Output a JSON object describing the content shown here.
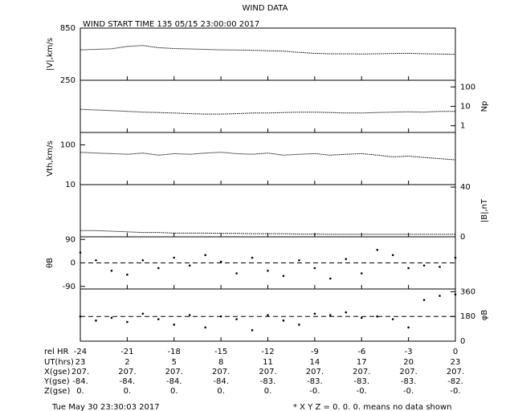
{
  "title": "WIND DATA",
  "subtitle": "WIND START TIME 135 05/15 23:00:00 2017",
  "chart_data": [
    {
      "type": "line",
      "ylabel": "|V|,km/s",
      "axis_side": "left",
      "color": "#000000",
      "x": [
        -24,
        -23,
        -22,
        -21,
        -20,
        -19,
        -18,
        -17,
        -16,
        -15,
        -14,
        -13,
        -12,
        -11,
        -10,
        -9,
        -8,
        -7,
        -6,
        -5,
        -4,
        -3,
        -2,
        -1,
        0
      ],
      "values": [
        600,
        605,
        612,
        640,
        650,
        625,
        615,
        610,
        605,
        600,
        598,
        595,
        590,
        585,
        570,
        560,
        555,
        555,
        552,
        555,
        558,
        560,
        555,
        552,
        548
      ],
      "xlim": [
        -24,
        0
      ],
      "xticks": [
        -24,
        -21,
        -18,
        -15,
        -12,
        -9,
        -6,
        -3,
        0
      ],
      "ylim": [
        250,
        850
      ],
      "yticks": [
        250,
        850
      ]
    },
    {
      "type": "line",
      "ylabel": "Np",
      "axis_side": "right",
      "log": true,
      "color": "#000000",
      "x": [
        -24,
        -23,
        -22,
        -21,
        -20,
        -19,
        -18,
        -17,
        -16,
        -15,
        -14,
        -13,
        -12,
        -11,
        -10,
        -9,
        -8,
        -7,
        -6,
        -5,
        -4,
        -3,
        -2,
        -1,
        0
      ],
      "values": [
        7,
        6.5,
        6,
        5.5,
        5,
        4.8,
        4.5,
        4.2,
        4,
        4,
        4.2,
        4.5,
        4.5,
        4.8,
        5,
        5,
        4.8,
        4.5,
        4.5,
        4.8,
        5,
        5.2,
        5,
        5.5,
        5.5
      ],
      "xlim": [
        -24,
        0
      ],
      "xticks": [
        -24,
        -21,
        -18,
        -15,
        -12,
        -9,
        -6,
        -3,
        0
      ],
      "ylim": [
        0.45,
        220
      ],
      "yticks": [
        1,
        10,
        100
      ]
    },
    {
      "type": "line",
      "ylabel": "Vth,km/s",
      "axis_side": "left",
      "log": true,
      "color": "#000000",
      "x": [
        -24,
        -23,
        -22,
        -21,
        -20,
        -19,
        -18,
        -17,
        -16,
        -15,
        -14,
        -13,
        -12,
        -11,
        -10,
        -9,
        -8,
        -7,
        -6,
        -5,
        -4,
        -3,
        -2,
        -1,
        0
      ],
      "values": [
        65,
        62,
        60,
        58,
        62,
        55,
        60,
        58,
        62,
        65,
        60,
        58,
        62,
        55,
        58,
        60,
        55,
        58,
        60,
        55,
        50,
        52,
        48,
        45,
        42
      ],
      "xlim": [
        -24,
        0
      ],
      "xticks": [
        -24,
        -21,
        -18,
        -15,
        -12,
        -9,
        -6,
        -3,
        0
      ],
      "ylim": [
        10,
        205
      ],
      "yticks": [
        10,
        100
      ]
    },
    {
      "type": "line",
      "ylabel": "|B|,nT",
      "axis_side": "right",
      "color": "#000000",
      "x": [
        -24,
        -23,
        -22,
        -21,
        -20,
        -19,
        -18,
        -17,
        -16,
        -15,
        -14,
        -13,
        -12,
        -11,
        -10,
        -9,
        -8,
        -7,
        -6,
        -5,
        -4,
        -3,
        -2,
        -1,
        0
      ],
      "values": [
        5,
        5,
        4.5,
        4,
        3.5,
        3.5,
        3,
        3,
        3,
        2.8,
        2.8,
        2.5,
        2.5,
        2.5,
        2.2,
        2.2,
        2,
        2,
        2,
        2,
        2,
        2,
        2,
        2,
        2
      ],
      "xlim": [
        -24,
        0
      ],
      "xticks": [
        -24,
        -21,
        -18,
        -15,
        -12,
        -9,
        -6,
        -3,
        0
      ],
      "ylim": [
        0,
        42
      ],
      "yticks": [
        0,
        40
      ]
    },
    {
      "type": "scatter",
      "ylabel": "θB",
      "axis_side": "left",
      "ref_line": 0,
      "color": "#000000",
      "x": [
        -24,
        -23,
        -22,
        -21,
        -20,
        -19,
        -18,
        -17,
        -16,
        -15,
        -14,
        -13,
        -12,
        -11,
        -10,
        -9,
        -8,
        -7,
        -6,
        -5,
        -4,
        -3,
        -2,
        -1,
        0
      ],
      "values": [
        40,
        10,
        -30,
        -45,
        10,
        -20,
        20,
        -10,
        30,
        5,
        -40,
        20,
        -30,
        -50,
        10,
        -20,
        -60,
        15,
        -40,
        50,
        30,
        -20,
        -10,
        -15,
        20
      ],
      "xlim": [
        -24,
        0
      ],
      "xticks": [
        -24,
        -21,
        -18,
        -15,
        -12,
        -9,
        -6,
        -3,
        0
      ],
      "ylim": [
        -100,
        100
      ],
      "yticks": [
        -90,
        0,
        90
      ]
    },
    {
      "type": "scatter",
      "ylabel": "φB",
      "axis_side": "right",
      "ref_line": 180,
      "color": "#000000",
      "x": [
        -24,
        -23,
        -22,
        -21,
        -20,
        -19,
        -18,
        -17,
        -16,
        -15,
        -14,
        -13,
        -12,
        -11,
        -10,
        -9,
        -8,
        -7,
        -6,
        -5,
        -4,
        -3,
        -2,
        -1,
        0
      ],
      "values": [
        180,
        150,
        170,
        140,
        200,
        160,
        120,
        190,
        100,
        180,
        160,
        80,
        190,
        150,
        120,
        200,
        190,
        210,
        170,
        180,
        160,
        100,
        300,
        330,
        340
      ],
      "xlim": [
        -24,
        0
      ],
      "xticks": [
        -24,
        -21,
        -18,
        -15,
        -12,
        -9,
        -6,
        -3,
        0
      ],
      "ylim": [
        0,
        380
      ],
      "yticks": [
        0,
        180,
        360
      ]
    }
  ],
  "ephemeris": {
    "xtick_row_label": "rel HR",
    "rows": [
      {
        "label": "UT(hrs)",
        "cells": [
          "23",
          "2",
          "5",
          "8",
          "11",
          "14",
          "17",
          "20",
          "23"
        ]
      },
      {
        "label": "X(gse)",
        "cells": [
          "207.",
          "207.",
          "207.",
          "207.",
          "207.",
          "207.",
          "207.",
          "207.",
          "207."
        ]
      },
      {
        "label": "Y(gse)",
        "cells": [
          "-84.",
          "-84.",
          "-84.",
          "-84.",
          "-83.",
          "-83.",
          "-83.",
          "-83.",
          "-82."
        ]
      },
      {
        "label": "Z(gse)",
        "cells": [
          "0.",
          "0.",
          "0.",
          "0.",
          "0.",
          "-0.",
          "-0.",
          "-0.",
          "-0."
        ]
      }
    ]
  },
  "footer": {
    "timestamp": "Tue May 30 23:30:03 2017",
    "note": "* X Y Z = 0. 0. 0. means no data shown"
  }
}
